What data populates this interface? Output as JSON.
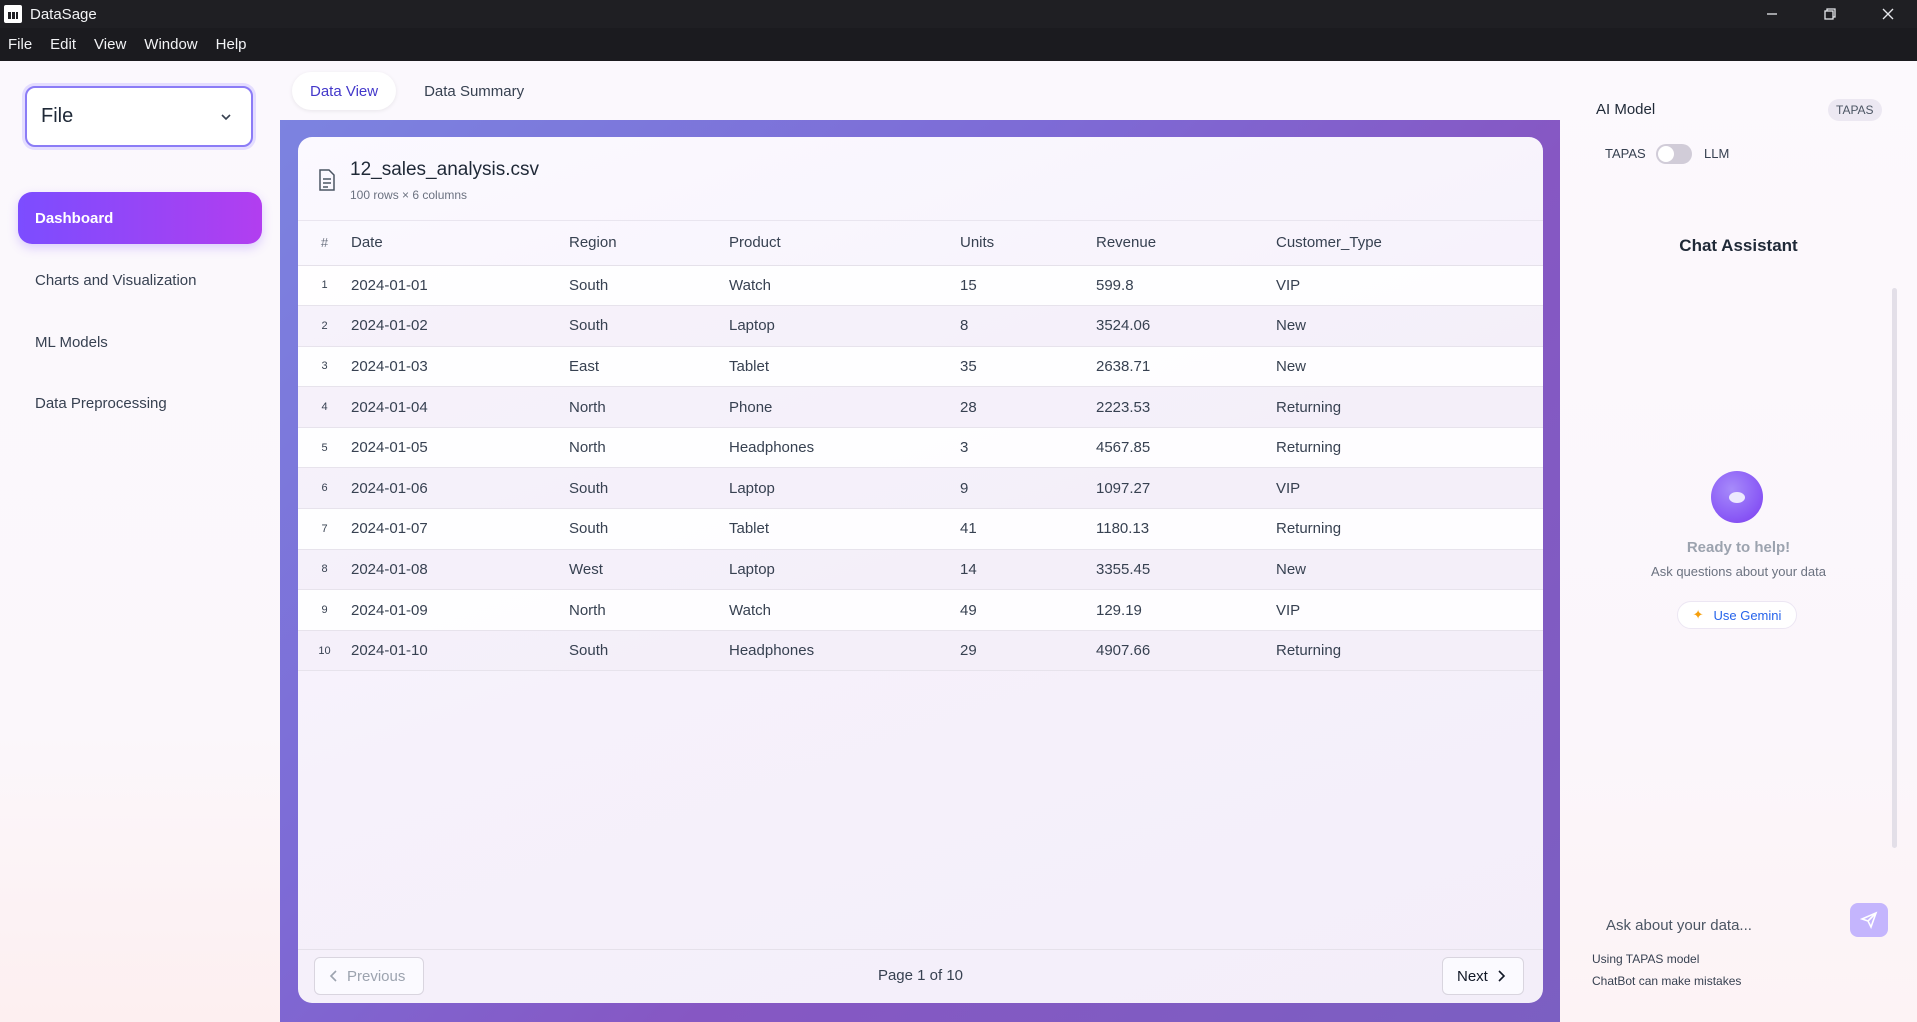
{
  "window": {
    "title": "DataSage"
  },
  "menu": [
    "File",
    "Edit",
    "View",
    "Window",
    "Help"
  ],
  "sidebar": {
    "file_select_label": "File",
    "items": [
      {
        "label": "Dashboard",
        "active": true
      },
      {
        "label": "Charts and Visualization",
        "active": false
      },
      {
        "label": "ML Models",
        "active": false
      },
      {
        "label": "Data Preprocessing",
        "active": false
      }
    ]
  },
  "tabs": [
    {
      "label": "Data View",
      "active": true
    },
    {
      "label": "Data Summary",
      "active": false
    }
  ],
  "dataset": {
    "filename": "12_sales_analysis.csv",
    "meta": "100 rows × 6 columns",
    "columns": [
      "#",
      "Date",
      "Region",
      "Product",
      "Units",
      "Revenue",
      "Customer_Type"
    ],
    "rows": [
      [
        "1",
        "2024-01-01",
        "South",
        "Watch",
        "15",
        "599.8",
        "VIP"
      ],
      [
        "2",
        "2024-01-02",
        "South",
        "Laptop",
        "8",
        "3524.06",
        "New"
      ],
      [
        "3",
        "2024-01-03",
        "East",
        "Tablet",
        "35",
        "2638.71",
        "New"
      ],
      [
        "4",
        "2024-01-04",
        "North",
        "Phone",
        "28",
        "2223.53",
        "Returning"
      ],
      [
        "5",
        "2024-01-05",
        "North",
        "Headphones",
        "3",
        "4567.85",
        "Returning"
      ],
      [
        "6",
        "2024-01-06",
        "South",
        "Laptop",
        "9",
        "1097.27",
        "VIP"
      ],
      [
        "7",
        "2024-01-07",
        "South",
        "Tablet",
        "41",
        "1180.13",
        "Returning"
      ],
      [
        "8",
        "2024-01-08",
        "West",
        "Laptop",
        "14",
        "3355.45",
        "New"
      ],
      [
        "9",
        "2024-01-09",
        "North",
        "Watch",
        "49",
        "129.19",
        "VIP"
      ],
      [
        "10",
        "2024-01-10",
        "South",
        "Headphones",
        "29",
        "4907.66",
        "Returning"
      ]
    ]
  },
  "pagination": {
    "previous_label": "Previous",
    "page_info": "Page 1 of 10",
    "next_label": "Next"
  },
  "assistant": {
    "model_label": "AI Model",
    "model_badge": "TAPAS",
    "toggle_left": "TAPAS",
    "toggle_right": "LLM",
    "title": "Chat Assistant",
    "ready": "Ready to help!",
    "hint": "Ask questions about your data",
    "gemini_label": "Use Gemini",
    "input_placeholder": "Ask about your data...",
    "footer_model": "Using TAPAS model",
    "footer_disclaimer": "ChatBot can make mistakes"
  },
  "colors": {
    "accent": "#7c4dff",
    "link": "#2563eb"
  }
}
